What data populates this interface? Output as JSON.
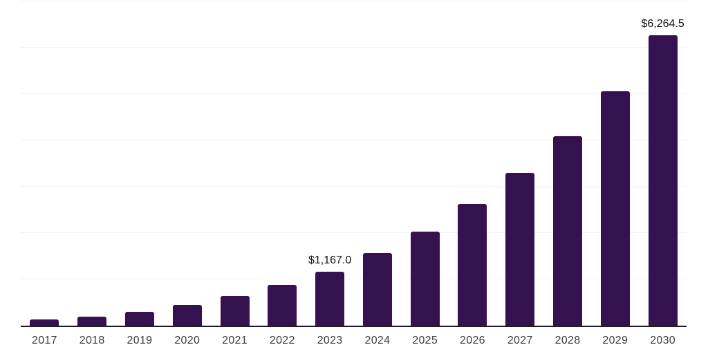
{
  "chart_data": {
    "type": "bar",
    "title": "",
    "xlabel": "",
    "ylabel": "",
    "categories": [
      "2017",
      "2018",
      "2019",
      "2020",
      "2021",
      "2022",
      "2023",
      "2024",
      "2025",
      "2026",
      "2027",
      "2028",
      "2029",
      "2030"
    ],
    "values": [
      140,
      200,
      305,
      450,
      640,
      885,
      1167.0,
      1565,
      2025,
      2620,
      3295,
      4090,
      5055,
      6264.5
    ],
    "value_labels": {
      "2023": "$1,167.0",
      "2030": "$6,264.5"
    },
    "ylim": [
      0,
      7000
    ],
    "gridline_interval": 1000,
    "grid": "horizontal",
    "legend": "none",
    "bar_color": "#361150",
    "gridline_color": "#f1f1f1",
    "axis_line_color": "#1f1a24",
    "value_label_color": "#111111",
    "tick_label_color": "#3d3d3d"
  }
}
